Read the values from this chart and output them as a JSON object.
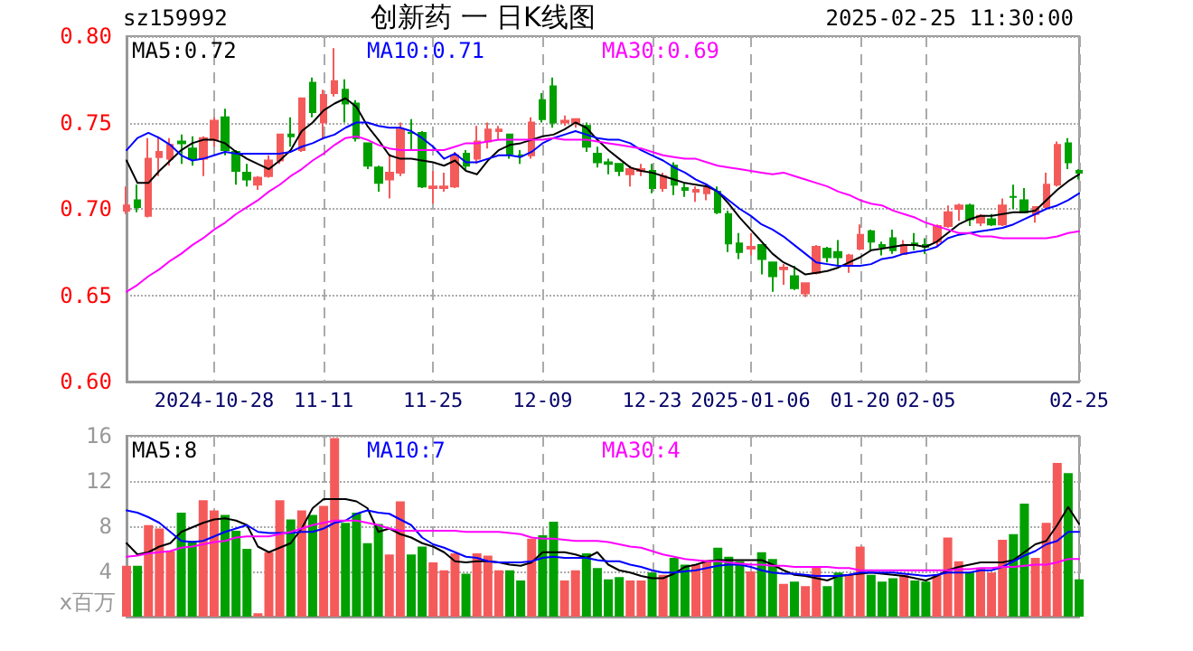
{
  "chart_data": [
    {
      "type": "candlestick",
      "title": "创新药 一 日K线图",
      "subtitle": "sz159992",
      "annotations": [
        "2025-02-25 11:30:00"
      ],
      "categories": [
        null,
        null,
        null,
        null,
        null,
        null,
        null,
        null,
        "2024-10-28",
        null,
        null,
        null,
        null,
        null,
        null,
        null,
        null,
        null,
        "11-11",
        null,
        null,
        null,
        null,
        null,
        null,
        null,
        null,
        null,
        "11-25",
        null,
        null,
        null,
        null,
        null,
        null,
        null,
        null,
        null,
        "12-09",
        null,
        null,
        null,
        null,
        null,
        null,
        null,
        null,
        null,
        "12-23",
        null,
        null,
        null,
        null,
        null,
        null,
        null,
        null,
        "2025-01-06",
        null,
        null,
        null,
        null,
        null,
        null,
        null,
        null,
        null,
        "01-20",
        null,
        null,
        null,
        null,
        null,
        "02-05",
        null,
        null,
        null,
        null,
        null,
        null,
        null,
        null,
        null,
        null,
        null,
        null,
        null,
        "02-25"
      ],
      "ohlc": [
        [
          0.699,
          0.713,
          0.697,
          0.702
        ],
        [
          0.705,
          0.714,
          0.698,
          0.701
        ],
        [
          0.696,
          0.741,
          0.695,
          0.729
        ],
        [
          0.73,
          0.742,
          0.719,
          0.733
        ],
        [
          0.729,
          0.741,
          0.725,
          0.737
        ],
        [
          0.739,
          0.743,
          0.726,
          0.738
        ],
        [
          0.735,
          0.742,
          0.725,
          0.729
        ],
        [
          0.729,
          0.742,
          0.719,
          0.741
        ],
        [
          0.74,
          0.753,
          0.736,
          0.751
        ],
        [
          0.753,
          0.758,
          0.731,
          0.734
        ],
        [
          0.733,
          0.734,
          0.714,
          0.722
        ],
        [
          0.721,
          0.726,
          0.713,
          0.717
        ],
        [
          0.714,
          0.719,
          0.711,
          0.718
        ],
        [
          0.719,
          0.731,
          0.718,
          0.728
        ],
        [
          0.728,
          0.743,
          0.726,
          0.743
        ],
        [
          0.743,
          0.753,
          0.736,
          0.742
        ],
        [
          0.734,
          0.764,
          0.733,
          0.764
        ],
        [
          0.773,
          0.776,
          0.753,
          0.756
        ],
        [
          0.75,
          0.769,
          0.74,
          0.766
        ],
        [
          0.767,
          0.793,
          0.765,
          0.774
        ],
        [
          0.769,
          0.775,
          0.75,
          0.761
        ],
        [
          0.761,
          0.763,
          0.739,
          0.741
        ],
        [
          0.738,
          0.738,
          0.723,
          0.725
        ],
        [
          0.724,
          0.725,
          0.71,
          0.715
        ],
        [
          0.717,
          0.732,
          0.706,
          0.721
        ],
        [
          0.721,
          0.75,
          0.719,
          0.746
        ],
        [
          0.744,
          0.752,
          0.734,
          0.744
        ],
        [
          0.744,
          0.745,
          0.712,
          0.713
        ],
        [
          0.712,
          0.722,
          0.703,
          0.713
        ],
        [
          0.712,
          0.721,
          0.71,
          0.713
        ],
        [
          0.713,
          0.733,
          0.712,
          0.731
        ],
        [
          0.732,
          0.734,
          0.722,
          0.725
        ],
        [
          0.729,
          0.748,
          0.726,
          0.739
        ],
        [
          0.739,
          0.75,
          0.735,
          0.746
        ],
        [
          0.745,
          0.748,
          0.74,
          0.746
        ],
        [
          0.743,
          0.743,
          0.729,
          0.732
        ],
        [
          0.731,
          0.734,
          0.726,
          0.731
        ],
        [
          0.731,
          0.753,
          0.729,
          0.75
        ],
        [
          0.763,
          0.767,
          0.75,
          0.752
        ],
        [
          0.771,
          0.776,
          0.747,
          0.75
        ],
        [
          0.75,
          0.754,
          0.748,
          0.751
        ],
        [
          0.75,
          0.752,
          0.747,
          0.752
        ],
        [
          0.748,
          0.75,
          0.733,
          0.736
        ],
        [
          0.732,
          0.736,
          0.724,
          0.727
        ],
        [
          0.727,
          0.729,
          0.72,
          0.726
        ],
        [
          0.726,
          0.726,
          0.719,
          0.722
        ],
        [
          0.72,
          0.725,
          0.713,
          0.723
        ],
        [
          0.722,
          0.726,
          0.719,
          0.723
        ],
        [
          0.722,
          0.726,
          0.709,
          0.712
        ],
        [
          0.712,
          0.721,
          0.71,
          0.719
        ],
        [
          0.725,
          0.727,
          0.708,
          0.714
        ],
        [
          0.712,
          0.715,
          0.707,
          0.711
        ],
        [
          0.71,
          0.713,
          0.704,
          0.711
        ],
        [
          0.709,
          0.714,
          0.705,
          0.712
        ],
        [
          0.71,
          0.713,
          0.697,
          0.698
        ],
        [
          0.697,
          0.699,
          0.675,
          0.68
        ],
        [
          0.68,
          0.686,
          0.671,
          0.675
        ],
        [
          0.677,
          0.686,
          0.673,
          0.678
        ],
        [
          0.679,
          0.679,
          0.662,
          0.671
        ],
        [
          0.669,
          0.669,
          0.652,
          0.661
        ],
        [
          0.665,
          0.668,
          0.656,
          0.666
        ],
        [
          0.661,
          0.667,
          0.653,
          0.654
        ],
        [
          0.651,
          0.657,
          0.649,
          0.657
        ],
        [
          0.663,
          0.679,
          0.662,
          0.678
        ],
        [
          0.677,
          0.678,
          0.669,
          0.672
        ],
        [
          0.675,
          0.682,
          0.667,
          0.672
        ],
        [
          0.667,
          0.674,
          0.663,
          0.673
        ],
        [
          0.677,
          0.691,
          0.676,
          0.685
        ],
        [
          0.687,
          0.688,
          0.676,
          0.681
        ],
        [
          0.679,
          0.681,
          0.673,
          0.678
        ],
        [
          0.683,
          0.688,
          0.674,
          0.676
        ],
        [
          0.674,
          0.682,
          0.674,
          0.679
        ],
        [
          0.68,
          0.686,
          0.676,
          0.679
        ],
        [
          0.679,
          0.683,
          0.674,
          0.678
        ],
        [
          0.681,
          0.691,
          0.678,
          0.69
        ],
        [
          0.69,
          0.702,
          0.689,
          0.698
        ],
        [
          0.7,
          0.703,
          0.693,
          0.702
        ],
        [
          0.702,
          0.703,
          0.69,
          0.694
        ],
        [
          0.692,
          0.697,
          0.69,
          0.696
        ],
        [
          0.694,
          0.697,
          0.69,
          0.691
        ],
        [
          0.691,
          0.706,
          0.69,
          0.702
        ],
        [
          0.707,
          0.714,
          0.7,
          0.707
        ],
        [
          0.705,
          0.712,
          0.698,
          0.698
        ],
        [
          0.697,
          0.701,
          0.692,
          0.701
        ],
        [
          0.701,
          0.721,
          0.7,
          0.714
        ],
        [
          0.714,
          0.739,
          0.713,
          0.737
        ],
        [
          0.738,
          0.741,
          0.723,
          0.727
        ],
        [
          0.722,
          0.723,
          0.717,
          0.721
        ]
      ],
      "colors": [
        "#f55a5a",
        "#00a000",
        "#f55a5a",
        "#f55a5a",
        "#f55a5a",
        "#00a000",
        "#00a000",
        "#f55a5a",
        "#f55a5a",
        "#00a000",
        "#00a000",
        "#00a000",
        "#f55a5a",
        "#f55a5a",
        "#f55a5a",
        "#00a000",
        "#f55a5a",
        "#00a000",
        "#f55a5a",
        "#f55a5a",
        "#00a000",
        "#00a000",
        "#00a000",
        "#00a000",
        "#f55a5a",
        "#f55a5a",
        "#00a000",
        "#00a000",
        "#f55a5a",
        "#f55a5a",
        "#f55a5a",
        "#00a000",
        "#f55a5a",
        "#f55a5a",
        "#f55a5a",
        "#00a000",
        "#00a000",
        "#f55a5a",
        "#00a000",
        "#00a000",
        "#f55a5a",
        "#f55a5a",
        "#00a000",
        "#00a000",
        "#00a000",
        "#00a000",
        "#f55a5a",
        "#f55a5a",
        "#00a000",
        "#f55a5a",
        "#00a000",
        "#00a000",
        "#f55a5a",
        "#f55a5a",
        "#00a000",
        "#00a000",
        "#00a000",
        "#f55a5a",
        "#00a000",
        "#00a000",
        "#f55a5a",
        "#00a000",
        "#f55a5a",
        "#f55a5a",
        "#00a000",
        "#00a000",
        "#f55a5a",
        "#f55a5a",
        "#00a000",
        "#00a000",
        "#00a000",
        "#f55a5a",
        "#00a000",
        "#00a000",
        "#f55a5a",
        "#f55a5a",
        "#f55a5a",
        "#00a000",
        "#f55a5a",
        "#00a000",
        "#f55a5a",
        "#00a000",
        "#00a000",
        "#f55a5a",
        "#f55a5a",
        "#f55a5a",
        "#00a000",
        "#00a000"
      ],
      "ylim": [
        0.6,
        0.8
      ],
      "yticks": [
        {
          "value": 0.6,
          "label": "0.60"
        },
        {
          "value": 0.65,
          "label": "0.65"
        },
        {
          "value": 0.7,
          "label": "0.70"
        },
        {
          "value": 0.75,
          "label": "0.75"
        },
        {
          "value": 0.8,
          "label": "0.80"
        }
      ],
      "grid": true,
      "legend": "top left",
      "series": [
        {
          "type": "line",
          "name": "MA5:0.72",
          "color": "#000000",
          "values": [
            0.728,
            0.715,
            0.715,
            0.722,
            0.728,
            0.734,
            0.738,
            0.74,
            0.74,
            0.738,
            0.733,
            0.729,
            0.726,
            0.723,
            0.728,
            0.734,
            0.745,
            0.75,
            0.757,
            0.761,
            0.764,
            0.759,
            0.748,
            0.74,
            0.731,
            0.729,
            0.729,
            0.728,
            0.727,
            0.725,
            0.728,
            0.722,
            0.72,
            0.728,
            0.734,
            0.737,
            0.738,
            0.74,
            0.742,
            0.743,
            0.746,
            0.75,
            0.747,
            0.74,
            0.734,
            0.729,
            0.724,
            0.722,
            0.721,
            0.719,
            0.717,
            0.715,
            0.714,
            0.713,
            0.71,
            0.703,
            0.695,
            0.688,
            0.681,
            0.674,
            0.669,
            0.666,
            0.662,
            0.663,
            0.664,
            0.666,
            0.669,
            0.672,
            0.676,
            0.677,
            0.678,
            0.679,
            0.679,
            0.678,
            0.681,
            0.686,
            0.691,
            0.694,
            0.696,
            0.696,
            0.697,
            0.698,
            0.698,
            0.699,
            0.705,
            0.711,
            0.716,
            0.72
          ]
        },
        {
          "type": "line",
          "name": "MA10:0.71",
          "color": "#0000ff",
          "values": [
            0.734,
            0.741,
            0.744,
            0.741,
            0.737,
            0.731,
            0.728,
            0.729,
            0.731,
            0.733,
            0.732,
            0.732,
            0.732,
            0.732,
            0.732,
            0.733,
            0.736,
            0.738,
            0.741,
            0.743,
            0.747,
            0.75,
            0.75,
            0.748,
            0.747,
            0.747,
            0.745,
            0.741,
            0.736,
            0.729,
            0.732,
            0.727,
            0.727,
            0.729,
            0.731,
            0.731,
            0.73,
            0.733,
            0.738,
            0.741,
            0.743,
            0.745,
            0.743,
            0.741,
            0.74,
            0.74,
            0.738,
            0.734,
            0.731,
            0.728,
            0.724,
            0.721,
            0.717,
            0.714,
            0.71,
            0.705,
            0.7,
            0.696,
            0.691,
            0.688,
            0.684,
            0.679,
            0.674,
            0.669,
            0.668,
            0.667,
            0.667,
            0.667,
            0.668,
            0.671,
            0.672,
            0.674,
            0.675,
            0.676,
            0.678,
            0.683,
            0.685,
            0.686,
            0.687,
            0.688,
            0.689,
            0.691,
            0.694,
            0.697,
            0.7,
            0.702,
            0.705,
            0.709
          ]
        },
        {
          "type": "line",
          "name": "MA30:0.69",
          "color": "#ff00ff",
          "values": [
            0.652,
            0.656,
            0.661,
            0.665,
            0.67,
            0.674,
            0.679,
            0.683,
            0.688,
            0.692,
            0.697,
            0.701,
            0.705,
            0.71,
            0.714,
            0.719,
            0.723,
            0.728,
            0.732,
            0.737,
            0.741,
            0.742,
            0.74,
            0.737,
            0.735,
            0.734,
            0.734,
            0.734,
            0.734,
            0.734,
            0.736,
            0.738,
            0.738,
            0.739,
            0.74,
            0.74,
            0.74,
            0.74,
            0.74,
            0.741,
            0.74,
            0.74,
            0.74,
            0.739,
            0.738,
            0.737,
            0.736,
            0.735,
            0.733,
            0.731,
            0.73,
            0.729,
            0.729,
            0.727,
            0.725,
            0.724,
            0.723,
            0.722,
            0.721,
            0.72,
            0.721,
            0.719,
            0.717,
            0.715,
            0.713,
            0.71,
            0.708,
            0.705,
            0.703,
            0.702,
            0.699,
            0.697,
            0.695,
            0.692,
            0.69,
            0.688,
            0.686,
            0.686,
            0.684,
            0.684,
            0.683,
            0.683,
            0.683,
            0.683,
            0.683,
            0.684,
            0.686,
            0.687
          ]
        }
      ]
    },
    {
      "type": "bar",
      "ylabel": "x百万",
      "categories": [
        null,
        null,
        null,
        null,
        null,
        null,
        null,
        null,
        null,
        null,
        null,
        null,
        null,
        null,
        null,
        null,
        null,
        null,
        null,
        null,
        null,
        null,
        null,
        null,
        null,
        null,
        null,
        null,
        null,
        null,
        null,
        null,
        null,
        null,
        null,
        null,
        null,
        null,
        null,
        null,
        null,
        null,
        null,
        null,
        null,
        null,
        null,
        null,
        null,
        null,
        null,
        null,
        null,
        null,
        null,
        null,
        null,
        null,
        null,
        null,
        null,
        null,
        null,
        null,
        null,
        null,
        null,
        null,
        null,
        null,
        null,
        null,
        null,
        null,
        null,
        null,
        null,
        null,
        null,
        null,
        null,
        null,
        null,
        null,
        null,
        null,
        null,
        null
      ],
      "tick_labels": "y",
      "ylim": [
        0,
        16
      ],
      "yticks": [
        4,
        8,
        12,
        16
      ],
      "grid": true,
      "legend": "top left",
      "series": [
        {
          "type": "bar",
          "values": [
            4.5,
            4.5,
            8.1,
            7.8,
            5.8,
            9.2,
            6.7,
            10.3,
            9.4,
            9.0,
            7.6,
            6.0,
            0.3,
            5.7,
            10.3,
            8.6,
            9.4,
            9.0,
            9.8,
            15.8,
            8.3,
            9.2,
            6.5,
            8.2,
            5.5,
            10.2,
            5.5,
            6.2,
            4.8,
            4.1,
            5.6,
            3.8,
            5.6,
            5.4,
            4.1,
            4.1,
            3.2,
            6.9,
            7.2,
            8.4,
            3.2,
            4.1,
            5.6,
            4.3,
            3.3,
            3.5,
            3.2,
            3.2,
            3.9,
            3.7,
            5.2,
            4.6,
            4.6,
            5.0,
            6.1,
            5.3,
            4.9,
            4.0,
            5.7,
            5.1,
            2.9,
            3.1,
            2.7,
            4.4,
            2.7,
            3.9,
            3.7,
            6.2,
            3.7,
            3.1,
            3.4,
            3.7,
            3.2,
            3.1,
            3.7,
            7.0,
            4.9,
            3.9,
            4.3,
            3.9,
            6.8,
            7.3,
            10.0,
            5.2,
            8.3,
            13.6,
            12.7,
            3.3
          ],
          "colors": [
            "#f55a5a",
            "#00a000",
            "#f55a5a",
            "#f55a5a",
            "#f55a5a",
            "#00a000",
            "#00a000",
            "#f55a5a",
            "#f55a5a",
            "#00a000",
            "#00a000",
            "#00a000",
            "#f55a5a",
            "#f55a5a",
            "#f55a5a",
            "#00a000",
            "#f55a5a",
            "#00a000",
            "#f55a5a",
            "#f55a5a",
            "#00a000",
            "#00a000",
            "#00a000",
            "#00a000",
            "#f55a5a",
            "#f55a5a",
            "#00a000",
            "#00a000",
            "#f55a5a",
            "#f55a5a",
            "#f55a5a",
            "#00a000",
            "#f55a5a",
            "#f55a5a",
            "#f55a5a",
            "#00a000",
            "#00a000",
            "#f55a5a",
            "#00a000",
            "#00a000",
            "#f55a5a",
            "#f55a5a",
            "#00a000",
            "#00a000",
            "#00a000",
            "#00a000",
            "#f55a5a",
            "#f55a5a",
            "#00a000",
            "#f55a5a",
            "#00a000",
            "#00a000",
            "#f55a5a",
            "#f55a5a",
            "#00a000",
            "#00a000",
            "#00a000",
            "#f55a5a",
            "#00a000",
            "#00a000",
            "#f55a5a",
            "#00a000",
            "#f55a5a",
            "#f55a5a",
            "#00a000",
            "#00a000",
            "#f55a5a",
            "#f55a5a",
            "#00a000",
            "#00a000",
            "#00a000",
            "#f55a5a",
            "#00a000",
            "#00a000",
            "#f55a5a",
            "#f55a5a",
            "#f55a5a",
            "#00a000",
            "#f55a5a",
            "#f55a5a",
            "#f55a5a",
            "#00a000",
            "#00a000",
            "#f55a5a",
            "#f55a5a",
            "#f55a5a",
            "#00a000",
            "#00a000"
          ]
        },
        {
          "type": "line",
          "name": "MA5:8",
          "color": "#000000",
          "values": [
            6.5,
            5.5,
            5.7,
            6.2,
            6.5,
            7.5,
            7.9,
            8.3,
            8.6,
            8.7,
            8.5,
            8.1,
            6.2,
            5.7,
            6.1,
            6.5,
            7.8,
            9.6,
            10.4,
            10.4,
            10.4,
            10.2,
            9.6,
            7.5,
            7.8,
            7.3,
            7.0,
            6.5,
            6.2,
            5.7,
            4.9,
            4.8,
            4.9,
            4.9,
            4.8,
            4.6,
            4.5,
            4.8,
            5.7,
            5.7,
            5.7,
            5.5,
            5.2,
            5.7,
            4.6,
            4.1,
            3.9,
            3.6,
            3.4,
            3.4,
            3.8,
            4.4,
            4.6,
            4.9,
            5.0,
            5.0,
            5.0,
            5.0,
            5.0,
            4.6,
            4.1,
            3.7,
            3.6,
            3.4,
            3.2,
            3.6,
            3.7,
            3.8,
            3.9,
            3.8,
            3.7,
            3.6,
            3.4,
            3.2,
            3.6,
            4.1,
            4.4,
            4.6,
            4.8,
            4.8,
            4.8,
            5.0,
            5.7,
            6.4,
            6.7,
            8.1,
            9.7,
            8.2
          ]
        },
        {
          "type": "line",
          "name": "MA10:7",
          "color": "#0000ff",
          "values": [
            9.4,
            9.2,
            8.8,
            8.3,
            7.5,
            6.7,
            6.6,
            6.7,
            7.1,
            7.5,
            7.8,
            8.1,
            7.5,
            7.4,
            7.4,
            7.4,
            7.5,
            7.5,
            7.8,
            8.3,
            8.5,
            9.1,
            9.4,
            9.2,
            9.1,
            8.6,
            8.1,
            7.0,
            6.4,
            6.1,
            5.7,
            5.3,
            5.2,
            4.9,
            4.8,
            4.8,
            4.8,
            4.9,
            5.2,
            5.3,
            5.2,
            5.2,
            5.2,
            5.0,
            4.9,
            4.9,
            4.6,
            4.4,
            4.1,
            3.9,
            3.9,
            4.0,
            4.1,
            4.3,
            4.5,
            4.6,
            4.6,
            4.4,
            4.1,
            3.9,
            3.8,
            3.8,
            3.7,
            3.6,
            3.6,
            3.6,
            3.7,
            3.9,
            3.9,
            3.9,
            3.9,
            3.8,
            3.7,
            3.6,
            3.7,
            3.9,
            3.9,
            3.9,
            4.1,
            4.1,
            4.4,
            4.9,
            5.4,
            5.8,
            6.4,
            6.7,
            7.5,
            7.5
          ]
        },
        {
          "type": "line",
          "name": "MA30:4",
          "color": "#ff00ff",
          "values": [
            5.3,
            5.4,
            5.6,
            5.7,
            5.8,
            6.1,
            6.2,
            6.4,
            6.6,
            6.7,
            7.0,
            7.1,
            7.1,
            7.1,
            7.3,
            7.5,
            7.8,
            8.1,
            8.3,
            8.5,
            8.5,
            8.5,
            8.3,
            8.1,
            7.8,
            7.6,
            7.6,
            7.6,
            7.6,
            7.6,
            7.6,
            7.5,
            7.5,
            7.5,
            7.5,
            7.4,
            7.3,
            7.0,
            6.9,
            6.9,
            6.8,
            6.7,
            6.7,
            6.7,
            6.6,
            6.4,
            6.2,
            6.1,
            5.8,
            5.5,
            5.3,
            5.1,
            5.0,
            4.9,
            4.9,
            4.8,
            4.7,
            4.6,
            4.6,
            4.5,
            4.5,
            4.4,
            4.4,
            4.4,
            4.4,
            4.3,
            4.3,
            4.1,
            4.1,
            4.1,
            4.1,
            4.1,
            4.1,
            4.1,
            4.1,
            4.1,
            4.2,
            4.2,
            4.3,
            4.3,
            4.4,
            4.4,
            4.5,
            4.6,
            4.6,
            4.8,
            5.1,
            5.1
          ]
        }
      ]
    }
  ]
}
